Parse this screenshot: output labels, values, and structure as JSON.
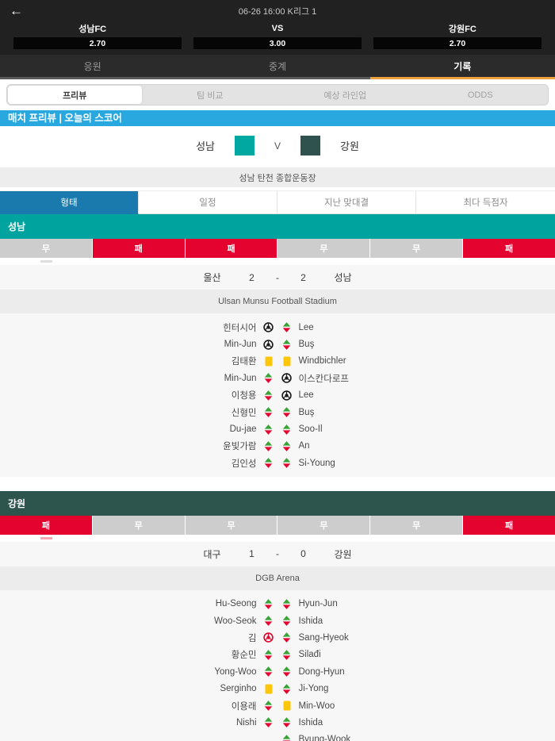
{
  "header": {
    "back_icon": "←",
    "title": "06-26 16:00 K리그 1",
    "home_team": "성남FC",
    "vs_label": "VS",
    "away_team": "강원FC",
    "odds": {
      "home": "2.70",
      "draw": "3.00",
      "away": "2.70"
    }
  },
  "main_tabs": [
    {
      "label": "응원",
      "active": false
    },
    {
      "label": "중계",
      "active": false
    },
    {
      "label": "기록",
      "active": true
    }
  ],
  "tab_indicator_color": "#efa23e",
  "sub_tabs": [
    {
      "label": "프리뷰",
      "active": true
    },
    {
      "label": "팀 비교",
      "active": false
    },
    {
      "label": "예상 라인업",
      "active": false
    },
    {
      "label": "ODDS",
      "active": false
    }
  ],
  "banner_title": "매치 프리뷰 | 오늘의 스코어",
  "matchup": {
    "home": "성남",
    "vs": "V",
    "away": "강원",
    "home_color": "#00a8a1",
    "away_color": "#2f524e"
  },
  "venue": "성남 탄천 종합운동장",
  "stat_tabs": [
    {
      "label": "형태",
      "active": true
    },
    {
      "label": "일정",
      "active": false
    },
    {
      "label": "지난 맞대결",
      "active": false
    },
    {
      "label": "최다 득점자",
      "active": false
    }
  ],
  "status_colors": {
    "loss_red": "#e4032e",
    "draw_gray": "#cdcdcd",
    "stat_tab_blue": "#1a7aad",
    "banner_blue": "#29a8e0"
  },
  "sections": [
    {
      "team": "성남",
      "color": "#00a39e",
      "marker_color": "#dedede",
      "form": [
        "무",
        "패",
        "패",
        "무",
        "무",
        "패"
      ],
      "last_match": {
        "home": "울산",
        "home_score": "2",
        "separator": "-",
        "away_score": "2",
        "away": "성남"
      },
      "stadium": "Ulsan Munsu Football Stadium",
      "events": [
        {
          "left": "힌터시어",
          "icons": [
            "goal",
            "sub"
          ],
          "right": "Lee"
        },
        {
          "left": "Min-Jun",
          "icons": [
            "goal",
            "sub"
          ],
          "right": "Buş"
        },
        {
          "left": "김태환",
          "icons": [
            "yellow",
            "yellow"
          ],
          "right": "Windbichler"
        },
        {
          "left": "Min-Jun",
          "icons": [
            "sub",
            "goal"
          ],
          "right": "이스칸다로프"
        },
        {
          "left": "이청용",
          "icons": [
            "sub",
            "goal"
          ],
          "right": "Lee"
        },
        {
          "left": "신형민",
          "icons": [
            "sub",
            "sub"
          ],
          "right": "Buş"
        },
        {
          "left": "Du-jae",
          "icons": [
            "sub",
            "sub"
          ],
          "right": "Soo-Il"
        },
        {
          "left": "윤빛가람",
          "icons": [
            "sub",
            "sub"
          ],
          "right": "An"
        },
        {
          "left": "김인성",
          "icons": [
            "sub",
            "sub"
          ],
          "right": "Si-Young"
        }
      ]
    },
    {
      "team": "강원",
      "color": "#2e544e",
      "marker_color": "#f5a7b3",
      "form": [
        "패",
        "무",
        "무",
        "무",
        "무",
        "패"
      ],
      "last_match": {
        "home": "대구",
        "home_score": "1",
        "separator": "-",
        "away_score": "0",
        "away": "강원"
      },
      "stadium": "DGB Arena",
      "events": [
        {
          "left": "Hu-Seong",
          "icons": [
            "sub",
            "sub"
          ],
          "right": "Hyun-Jun"
        },
        {
          "left": "Woo-Seok",
          "icons": [
            "sub",
            "sub"
          ],
          "right": "Ishida"
        },
        {
          "left": "김",
          "icons": [
            "own-goal",
            "sub"
          ],
          "right": "Sang-Hyeok"
        },
        {
          "left": "황순민",
          "icons": [
            "sub",
            "sub"
          ],
          "right": "Silađi"
        },
        {
          "left": "Yong-Woo",
          "icons": [
            "sub",
            "sub"
          ],
          "right": "Dong-Hyun"
        },
        {
          "left": "Serginho",
          "icons": [
            "yellow",
            "sub"
          ],
          "right": "Ji-Yong"
        },
        {
          "left": "이용래",
          "icons": [
            "sub",
            "yellow"
          ],
          "right": "Min-Woo"
        },
        {
          "left": "Nishi",
          "icons": [
            "sub",
            "sub"
          ],
          "right": "Ishida"
        },
        {
          "left": "",
          "icons": [
            "none",
            "sub"
          ],
          "right": "Byung-Wook"
        },
        {
          "left": "",
          "icons": [
            "sub",
            "none"
          ],
          "right": ""
        }
      ]
    }
  ]
}
